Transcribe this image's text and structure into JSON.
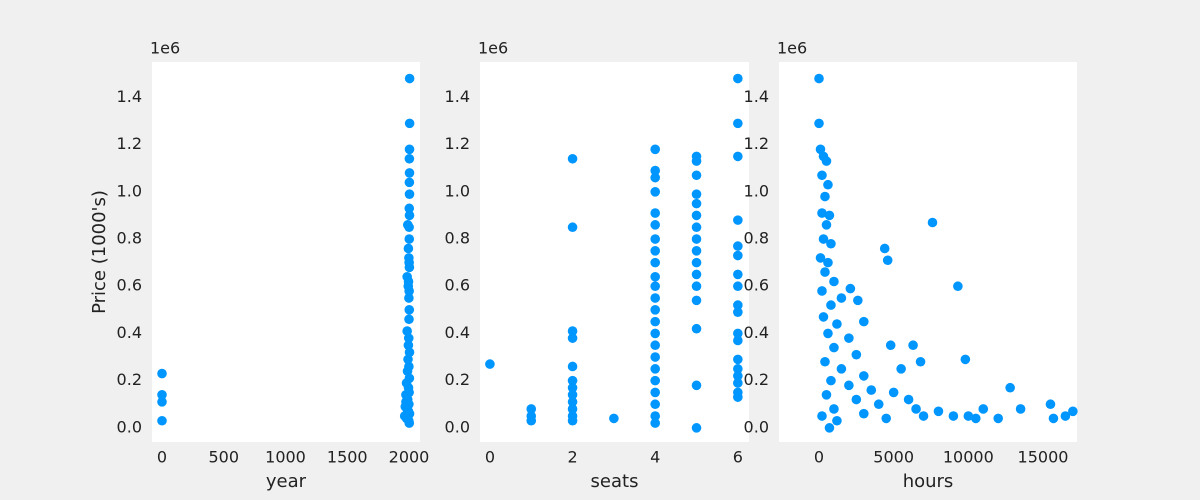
{
  "chart_data": [
    {
      "type": "scatter",
      "xlabel": "year",
      "ylabel": "Price (1000's)",
      "offset_label": "1e6",
      "color": "#0096ff",
      "xlim": [
        -81,
        2089
      ],
      "ylim": [
        -0.06,
        1.55
      ],
      "xticks": [
        0,
        500,
        1000,
        1500,
        2000
      ],
      "yticks": [
        {
          "value": 0,
          "label": "0.0"
        },
        0.2,
        0.4,
        0.6,
        0.8,
        {
          "value": 1,
          "label": "1.0"
        },
        1.2,
        1.4
      ],
      "x": [
        0,
        0,
        0,
        0,
        2005,
        2005,
        2004,
        2003,
        2004,
        2003,
        2004,
        2002,
        2004,
        1990,
        2001,
        2002,
        1995,
        1999,
        2003,
        1985,
        1996,
        2001,
        1999,
        2002,
        2000,
        1985,
        1998,
        1995,
        2004,
        1992,
        1999,
        1988,
        2003,
        1980,
        1996,
        2001,
        1975,
        1990,
        1999,
        1970,
        1985,
        1995,
        2004,
        1965,
        1980,
        1998,
        2002,
        1990,
        1975,
        2001,
        1994
      ],
      "values": [
        0.23,
        0.14,
        0.11,
        0.03,
        1.48,
        1.29,
        1.18,
        1.14,
        1.08,
        1.04,
        0.99,
        0.93,
        0.9,
        0.86,
        0.85,
        0.8,
        0.76,
        0.72,
        0.68,
        0.64,
        0.62,
        0.58,
        0.55,
        0.5,
        0.46,
        0.41,
        0.38,
        0.35,
        0.32,
        0.29,
        0.26,
        0.24,
        0.21,
        0.19,
        0.17,
        0.15,
        0.14,
        0.12,
        0.1,
        0.09,
        0.08,
        0.07,
        0.06,
        0.05,
        0.04,
        0.03,
        0.02,
        0.05,
        0.11,
        0.7,
        0.6
      ]
    },
    {
      "type": "scatter",
      "xlabel": "seats",
      "offset_label": "1e6",
      "color": "#0096ff",
      "xlim": [
        -0.24,
        6.27
      ],
      "ylim": [
        -0.06,
        1.55
      ],
      "xticks": [
        0,
        2,
        4,
        6
      ],
      "yticks": [
        {
          "value": 0,
          "label": "0.0"
        },
        0.2,
        0.4,
        0.6,
        0.8,
        {
          "value": 1,
          "label": "1.0"
        },
        1.2,
        1.4
      ],
      "x": [
        0,
        1,
        1,
        1,
        2,
        2,
        2,
        2,
        2,
        2,
        2,
        2,
        2,
        2,
        2,
        2,
        3,
        4,
        4,
        4,
        4,
        4,
        4,
        4,
        4,
        4,
        4,
        4,
        4,
        4,
        4,
        4,
        4,
        4,
        4,
        4,
        4,
        4,
        4,
        4,
        5,
        5,
        5,
        5,
        5,
        5,
        5,
        5,
        5,
        5,
        5,
        5,
        5,
        5,
        5,
        5,
        6,
        6,
        6,
        6,
        6,
        6,
        6,
        6,
        6,
        6,
        6,
        6,
        6,
        6,
        6,
        6,
        6,
        6
      ],
      "values": [
        0.27,
        0.08,
        0.05,
        0.03,
        1.14,
        0.85,
        0.41,
        0.38,
        0.26,
        0.2,
        0.17,
        0.14,
        0.11,
        0.08,
        0.05,
        0.03,
        0.04,
        1.18,
        1.09,
        1.06,
        1.0,
        0.91,
        0.86,
        0.8,
        0.75,
        0.7,
        0.64,
        0.6,
        0.55,
        0.5,
        0.45,
        0.4,
        0.35,
        0.3,
        0.25,
        0.2,
        0.15,
        0.1,
        0.05,
        0.02,
        1.15,
        1.13,
        1.07,
        0.99,
        0.95,
        0.9,
        0.85,
        0.8,
        0.75,
        0.7,
        0.65,
        0.6,
        0.54,
        0.42,
        0.18,
        0.0,
        1.48,
        1.29,
        1.15,
        0.88,
        0.77,
        0.73,
        0.65,
        0.6,
        0.52,
        0.49,
        0.4,
        0.37,
        0.29,
        0.25,
        0.22,
        0.19,
        0.15,
        0.13
      ]
    },
    {
      "type": "scatter",
      "xlabel": "hours",
      "offset_label": "1e6",
      "color": "#0096ff",
      "xlim": [
        -2679,
        17277
      ],
      "ylim": [
        -0.06,
        1.55
      ],
      "xticks": [
        0,
        5000,
        10000,
        15000
      ],
      "yticks": [
        {
          "value": 0,
          "label": "0.0"
        },
        0.2,
        0.4,
        0.6,
        0.8,
        {
          "value": 1,
          "label": "1.0"
        },
        1.2,
        1.4
      ],
      "x": [
        0,
        0,
        100,
        300,
        500,
        200,
        600,
        400,
        200,
        700,
        500,
        300,
        800,
        100,
        600,
        400,
        1000,
        200,
        1500,
        800,
        300,
        1200,
        600,
        2000,
        1000,
        2500,
        400,
        1500,
        3000,
        800,
        2000,
        3500,
        500,
        2500,
        4000,
        1000,
        3000,
        4500,
        200,
        1200,
        700,
        5000,
        5500,
        6000,
        6500,
        7000,
        7600,
        9300,
        9800,
        4400,
        4600,
        2100,
        2600,
        3000,
        4800,
        6300,
        6800,
        8000,
        9000,
        10000,
        10500,
        11000,
        12000,
        12800,
        13500,
        15500,
        15700,
        16500,
        17000
      ],
      "values": [
        1.48,
        1.29,
        1.18,
        1.15,
        1.13,
        1.07,
        1.03,
        0.98,
        0.91,
        0.9,
        0.86,
        0.8,
        0.78,
        0.72,
        0.7,
        0.66,
        0.62,
        0.58,
        0.55,
        0.52,
        0.47,
        0.44,
        0.4,
        0.38,
        0.34,
        0.31,
        0.28,
        0.25,
        0.22,
        0.2,
        0.18,
        0.16,
        0.14,
        0.12,
        0.1,
        0.08,
        0.06,
        0.04,
        0.05,
        0.03,
        0.0,
        0.15,
        0.25,
        0.12,
        0.08,
        0.05,
        0.87,
        0.6,
        0.29,
        0.76,
        0.71,
        0.59,
        0.54,
        0.45,
        0.35,
        0.35,
        0.28,
        0.07,
        0.05,
        0.05,
        0.04,
        0.08,
        0.04,
        0.17,
        0.08,
        0.1,
        0.04,
        0.05,
        0.07
      ]
    }
  ]
}
